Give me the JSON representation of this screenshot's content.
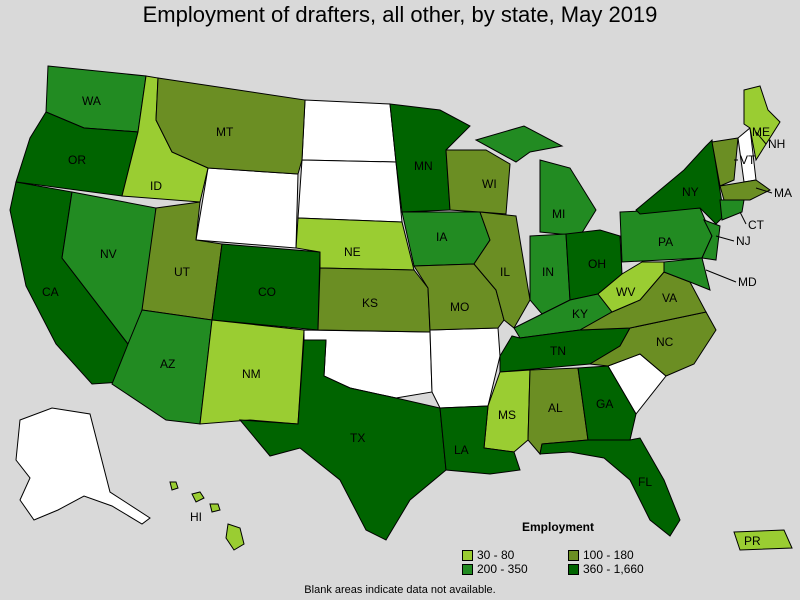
{
  "title": "Employment of drafters, all other, by state, May 2019",
  "legend": {
    "title": "Employment",
    "items": [
      {
        "label": "30 - 80",
        "color": "#9acd32"
      },
      {
        "label": "100 - 180",
        "color": "#6b8e23"
      },
      {
        "label": "200 - 350",
        "color": "#228b22"
      },
      {
        "label": "360 - 1,660",
        "color": "#006400"
      }
    ]
  },
  "note": "Blank areas indicate data not available.",
  "colors": {
    "none": "#ffffff",
    "c1": "#9acd32",
    "c2": "#6b8e23",
    "c3": "#228b22",
    "c4": "#006400"
  },
  "states": {
    "WA": "WA",
    "OR": "OR",
    "CA": "CA",
    "NV": "NV",
    "ID": "ID",
    "MT": "MT",
    "UT": "UT",
    "AZ": "AZ",
    "CO": "CO",
    "NM": "NM",
    "NE": "NE",
    "KS": "KS",
    "TX": "TX",
    "MN": "MN",
    "IA": "IA",
    "MO": "MO",
    "WI": "WI",
    "IL": "IL",
    "MI": "MI",
    "IN": "IN",
    "OH": "OH",
    "KY": "KY",
    "TN": "TN",
    "MS": "MS",
    "AL": "AL",
    "GA": "GA",
    "FL": "FL",
    "LA": "LA",
    "NC": "NC",
    "VA": "VA",
    "WV": "WV",
    "PA": "PA",
    "NY": "NY",
    "ME": "ME",
    "VT": "VT",
    "NH": "NH",
    "MA": "MA",
    "CT": "CT",
    "NJ": "NJ",
    "MD": "MD",
    "HI": "HI",
    "PR": "PR"
  }
}
